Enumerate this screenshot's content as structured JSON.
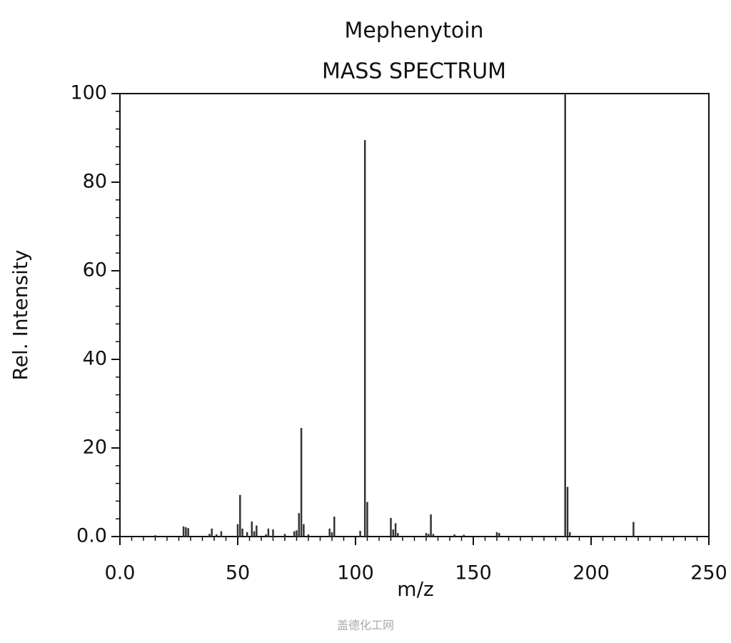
{
  "chart_data": {
    "type": "bar",
    "title": "Mephenytoin",
    "subtitle": "MASS SPECTRUM",
    "x_label": "m/z",
    "y_label": "Rel. Intensity",
    "x": [
      15,
      27,
      28,
      29,
      38,
      39,
      41,
      43,
      50,
      51,
      52,
      54,
      56,
      57,
      58,
      62,
      63,
      65,
      70,
      74,
      75,
      76,
      77,
      78,
      80,
      89,
      90,
      91,
      102,
      104,
      105,
      115,
      116,
      117,
      118,
      130,
      131,
      132,
      133,
      142,
      146,
      160,
      161,
      189,
      190,
      191,
      218
    ],
    "values": [
      0.3,
      2.3,
      2.1,
      1.9,
      0.6,
      1.8,
      0.5,
      1.2,
      2.8,
      9.4,
      1.8,
      1.0,
      3.4,
      1.2,
      2.5,
      0.5,
      1.8,
      1.6,
      0.6,
      1.2,
      1.4,
      5.3,
      24.5,
      2.8,
      0.5,
      1.8,
      1.0,
      4.5,
      1.3,
      89.5,
      7.8,
      4.2,
      1.6,
      3.0,
      0.8,
      0.8,
      0.6,
      5.0,
      0.6,
      0.5,
      0.4,
      1.0,
      0.8,
      100,
      11.2,
      1.0,
      3.3
    ],
    "color": "#333333",
    "xlim": [
      0,
      250
    ],
    "xticks": [
      {
        "value": 0,
        "label": "0.0"
      },
      50,
      100,
      150,
      200,
      250
    ],
    "ylim": [
      0,
      100
    ],
    "yticks": [
      {
        "value": 0,
        "label": "0.0"
      },
      20,
      40,
      60,
      80,
      100
    ],
    "watermark": "盖德化工网"
  }
}
